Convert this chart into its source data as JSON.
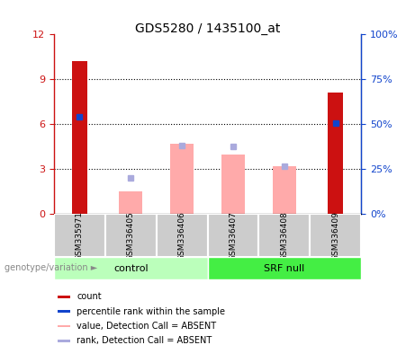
{
  "title": "GDS5280 / 1435100_at",
  "samples": [
    "GSM335971",
    "GSM336405",
    "GSM336406",
    "GSM336407",
    "GSM336408",
    "GSM336409"
  ],
  "groups": [
    "control",
    "control",
    "control",
    "SRF null",
    "SRF null",
    "SRF null"
  ],
  "count_values": [
    10.2,
    null,
    null,
    null,
    null,
    8.1
  ],
  "rank_values": [
    6.5,
    null,
    null,
    null,
    null,
    6.1
  ],
  "absent_value": [
    null,
    1.5,
    4.7,
    4.0,
    3.2,
    null
  ],
  "absent_rank": [
    null,
    2.4,
    4.6,
    4.5,
    3.2,
    null
  ],
  "ylim_left": [
    0,
    12
  ],
  "ylim_right": [
    0,
    100
  ],
  "yticks_left": [
    0,
    3,
    6,
    9,
    12
  ],
  "yticks_right": [
    0,
    25,
    50,
    75,
    100
  ],
  "ytick_labels_left": [
    "0",
    "3",
    "6",
    "9",
    "12"
  ],
  "ytick_labels_right": [
    "0%",
    "25%",
    "50%",
    "75%",
    "100%"
  ],
  "color_count": "#cc1111",
  "color_rank": "#1144cc",
  "color_absent_value": "#ffaaaa",
  "color_absent_rank": "#aaaadd",
  "bar_width": 0.35,
  "legend_items": [
    {
      "label": "count",
      "color": "#cc1111"
    },
    {
      "label": "percentile rank within the sample",
      "color": "#1144cc"
    },
    {
      "label": "value, Detection Call = ABSENT",
      "color": "#ffaaaa"
    },
    {
      "label": "rank, Detection Call = ABSENT",
      "color": "#aaaadd"
    }
  ]
}
